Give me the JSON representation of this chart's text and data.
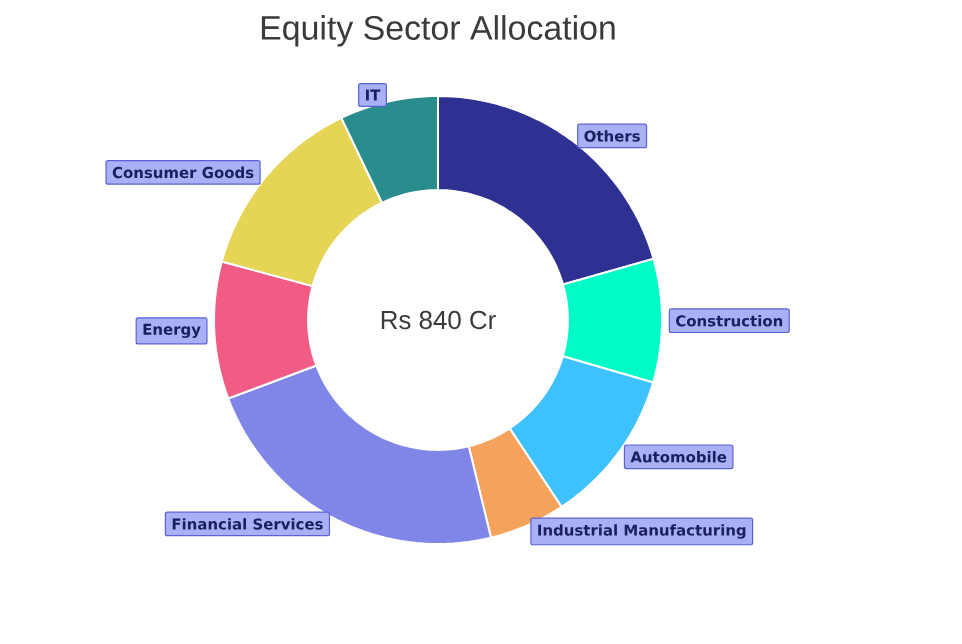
{
  "chart_data": {
    "type": "donut",
    "title": "Equity Sector Allocation",
    "categories": [
      "Others",
      "Construction",
      "Automobile",
      "Industrial Manufacturing",
      "Financial Services",
      "Energy",
      "Consumer Goods",
      "IT"
    ],
    "values": [
      20.6,
      8.9,
      11.2,
      5.5,
      23.1,
      9.9,
      13.7,
      7.1
    ],
    "colors": [
      "#2e3192",
      "#00fcc6",
      "#3ec2ff",
      "#f5a25d",
      "#7f86e8",
      "#f25c84",
      "#e6d454",
      "#2a8d8d"
    ],
    "annotations": [
      "Rs 840 Cr"
    ]
  }
}
